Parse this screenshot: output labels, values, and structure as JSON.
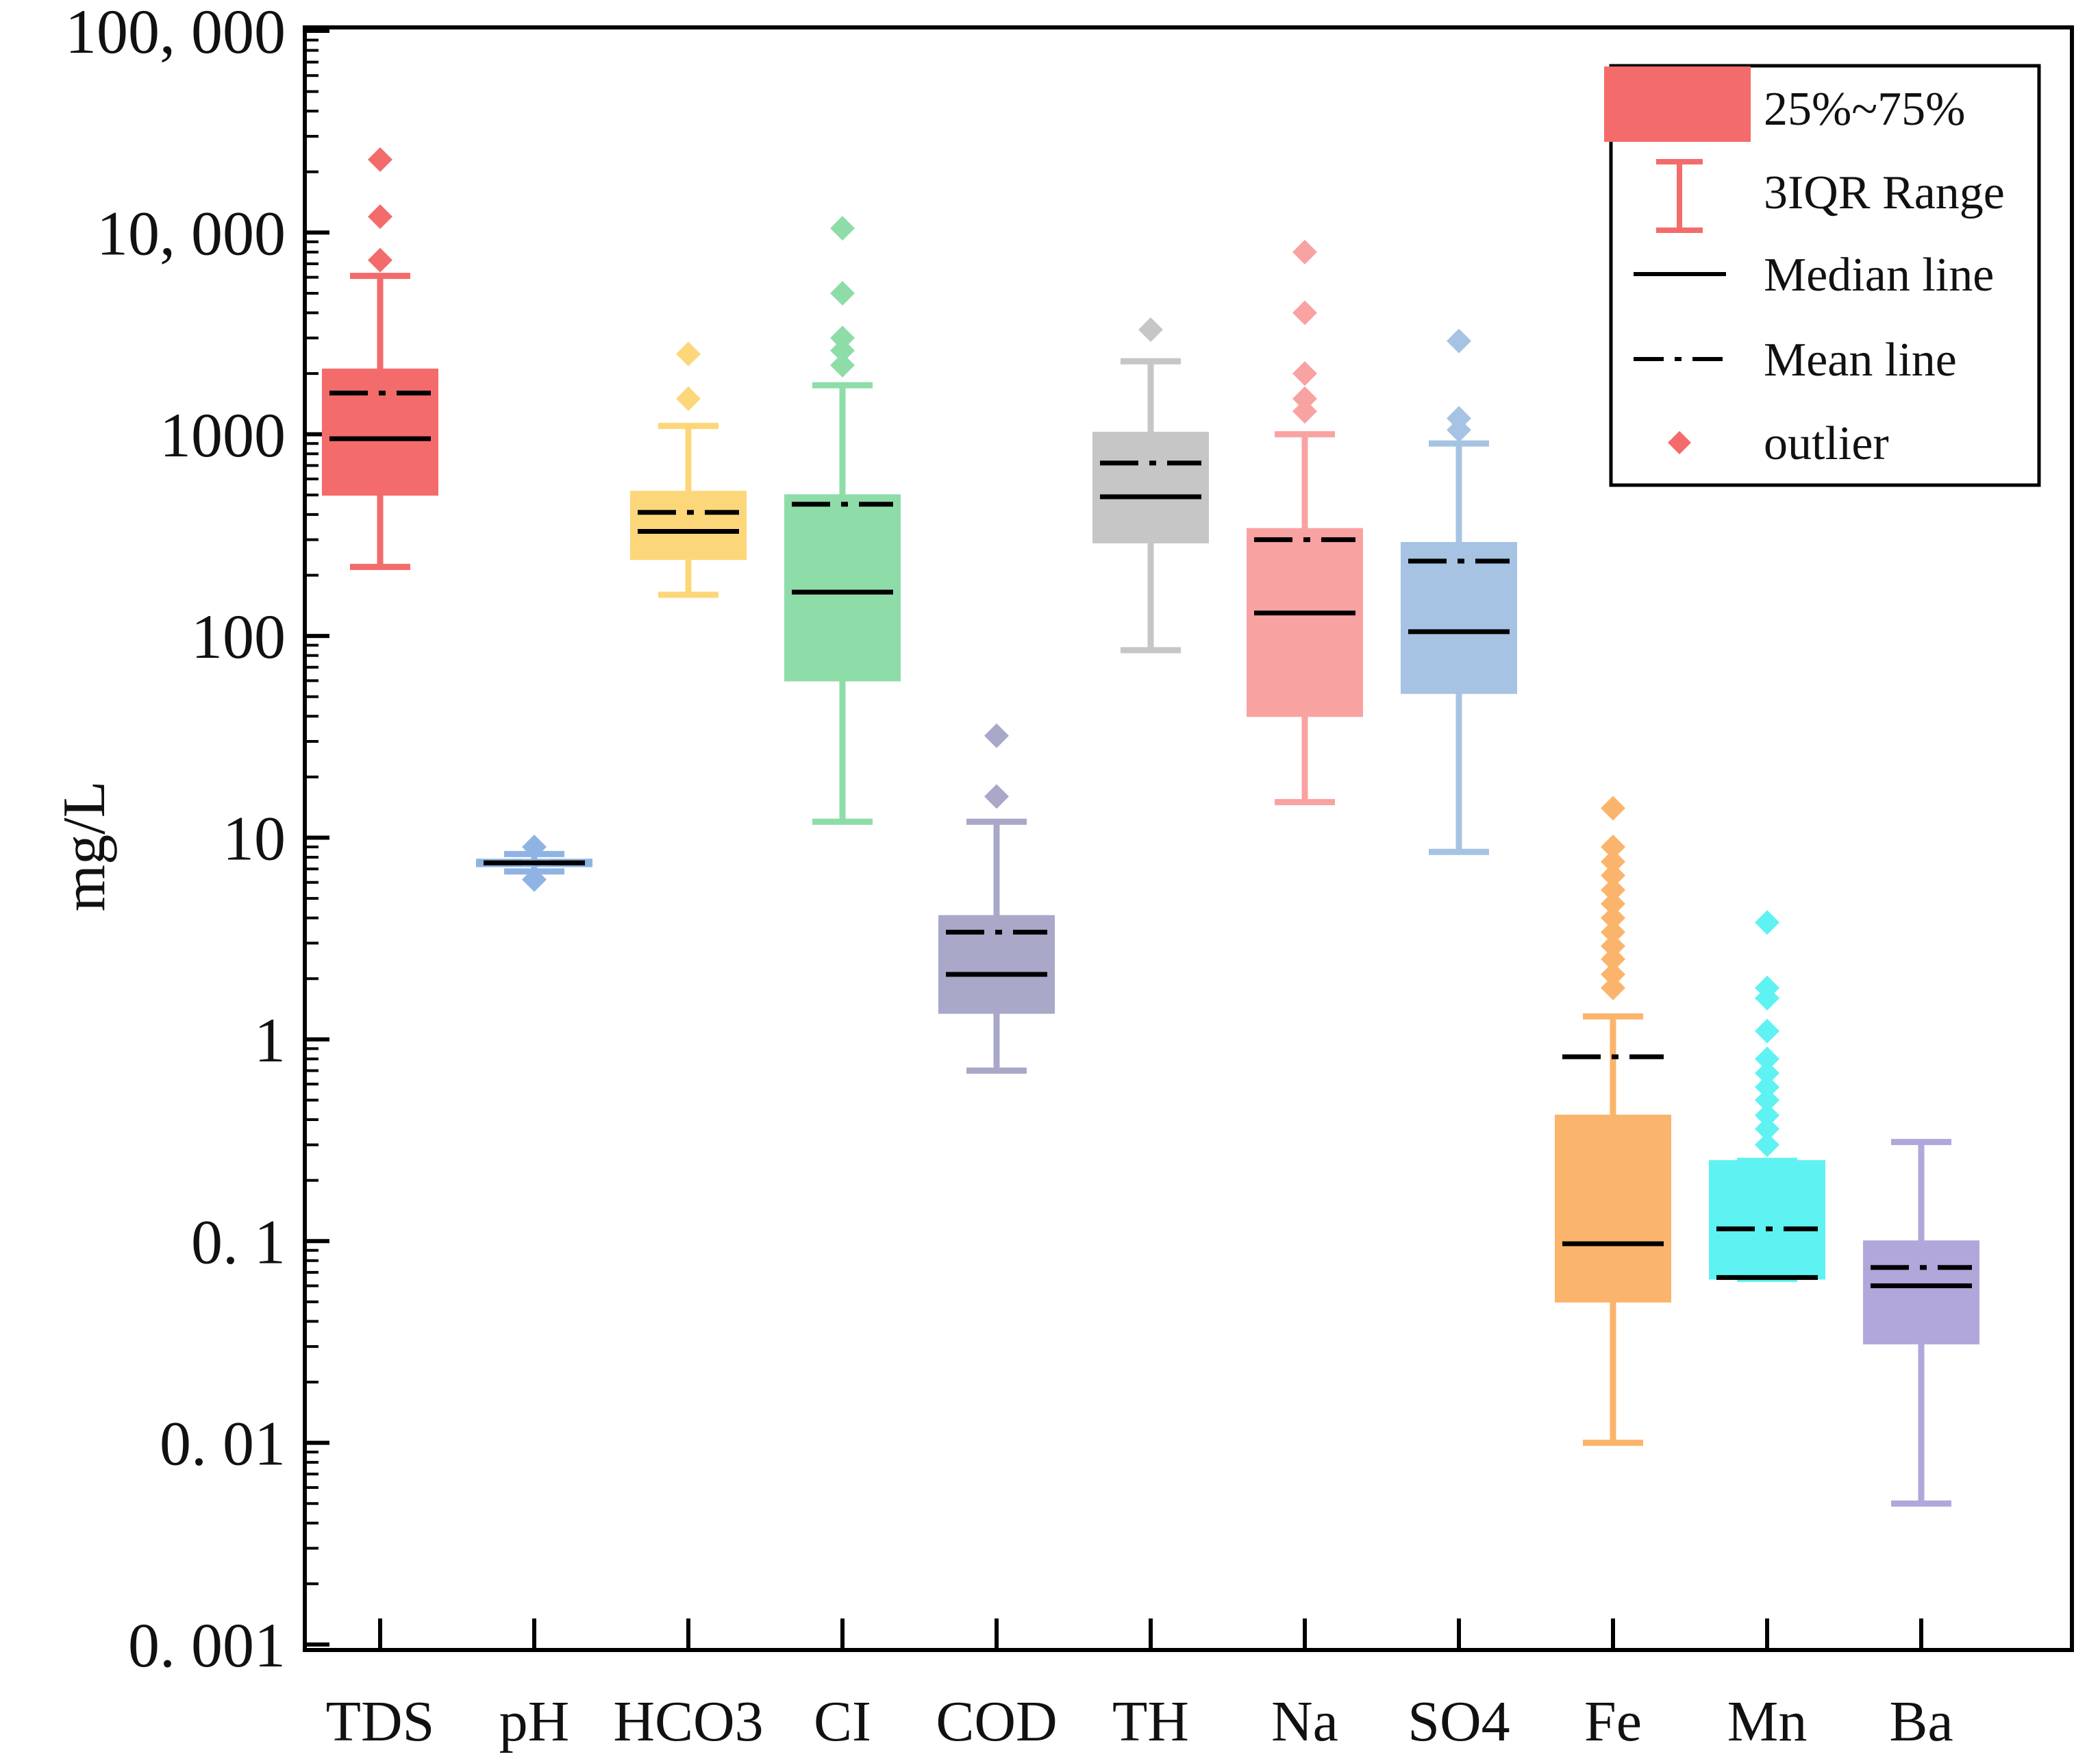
{
  "chart_data": {
    "type": "box",
    "scale": "log",
    "ylabel": "mg/L",
    "ylim": [
      0.001,
      100000
    ],
    "y_ticks": [
      {
        "value": 100000,
        "label": "100, 000"
      },
      {
        "value": 10000,
        "label": "10, 000"
      },
      {
        "value": 1000,
        "label": "1000"
      },
      {
        "value": 100,
        "label": "100"
      },
      {
        "value": 10,
        "label": "10"
      },
      {
        "value": 1,
        "label": "1"
      },
      {
        "value": 0.1,
        "label": "0. 1"
      },
      {
        "value": 0.01,
        "label": "0. 01"
      },
      {
        "value": 0.001,
        "label": "0. 001"
      }
    ],
    "categories": [
      "TDS",
      "pH",
      "HCO3",
      "CI",
      "COD",
      "TH",
      "Na",
      "SO4",
      "Fe",
      "Mn",
      "Ba"
    ],
    "series": [
      {
        "name": "TDS",
        "color": "#f46b6b",
        "q1": 500,
        "q3": 2100,
        "median": 950,
        "mean": 1600,
        "whisker_low": 220,
        "whisker_high": 6100,
        "outliers": [
          7300,
          12000,
          23000
        ]
      },
      {
        "name": "pH",
        "color": "#8fb4e3",
        "q1": 7.2,
        "q3": 7.8,
        "median": 7.5,
        "mean": 7.5,
        "whisker_low": 6.8,
        "whisker_high": 8.3,
        "outliers": [
          6.2,
          9.0
        ]
      },
      {
        "name": "HCO3",
        "color": "#fcd77a",
        "q1": 240,
        "q3": 520,
        "median": 330,
        "mean": 410,
        "whisker_low": 160,
        "whisker_high": 1100,
        "outliers": [
          1500,
          2500
        ]
      },
      {
        "name": "CI",
        "color": "#8edda9",
        "q1": 60,
        "q3": 500,
        "median": 165,
        "mean": 450,
        "whisker_low": 12,
        "whisker_high": 1750,
        "outliers": [
          2200,
          2600,
          3000,
          5000,
          10500
        ]
      },
      {
        "name": "COD",
        "color": "#a9a8c9",
        "q1": 1.35,
        "q3": 4.1,
        "median": 2.1,
        "mean": 3.4,
        "whisker_low": 0.7,
        "whisker_high": 12,
        "outliers": [
          16,
          32
        ]
      },
      {
        "name": "TH",
        "color": "#c6c6c6",
        "q1": 290,
        "q3": 1020,
        "median": 490,
        "mean": 720,
        "whisker_low": 85,
        "whisker_high": 2300,
        "outliers": [
          3300
        ]
      },
      {
        "name": "Na",
        "color": "#f9a2a2",
        "q1": 40,
        "q3": 340,
        "median": 130,
        "mean": 300,
        "whisker_low": 15,
        "whisker_high": 1000,
        "outliers": [
          1300,
          1500,
          2000,
          4000,
          8000
        ]
      },
      {
        "name": "SO4",
        "color": "#a6c3e3",
        "q1": 52,
        "q3": 290,
        "median": 105,
        "mean": 235,
        "whisker_low": 8.5,
        "whisker_high": 900,
        "outliers": [
          1050,
          1200,
          2900
        ]
      },
      {
        "name": "Fe",
        "color": "#fbb46b",
        "q1": 0.05,
        "q3": 0.42,
        "median": 0.097,
        "mean": 0.82,
        "whisker_low": 0.01,
        "whisker_high": 1.3,
        "outliers": [
          1.8,
          2.1,
          2.5,
          2.9,
          3.4,
          4.0,
          4.7,
          5.5,
          6.5,
          7.6,
          9.0,
          14
        ]
      },
      {
        "name": "Mn",
        "color": "#5ff2f2",
        "q1": 0.065,
        "q3": 0.25,
        "median": 0.066,
        "mean": 0.115,
        "whisker_low": 0.065,
        "whisker_high": 0.25,
        "outliers": [
          0.3,
          0.36,
          0.42,
          0.5,
          0.58,
          0.68,
          0.8,
          1.1,
          1.6,
          1.8,
          3.8
        ]
      },
      {
        "name": "Ba",
        "color": "#b2a7db",
        "q1": 0.031,
        "q3": 0.1,
        "median": 0.06,
        "mean": 0.074,
        "whisker_low": 0.005,
        "whisker_high": 0.31,
        "outliers": []
      }
    ],
    "legend": {
      "position": "top-right",
      "items": [
        {
          "type": "box",
          "label": "25%~75%",
          "color": "#f46b6b"
        },
        {
          "type": "range",
          "label": "3IQR Range",
          "color": "#f46b6b"
        },
        {
          "type": "median",
          "label": "Median line",
          "color": "#000000"
        },
        {
          "type": "mean",
          "label": "Mean line",
          "color": "#000000"
        },
        {
          "type": "outlier",
          "label": "outlier",
          "color": "#f46b6b"
        }
      ]
    }
  }
}
